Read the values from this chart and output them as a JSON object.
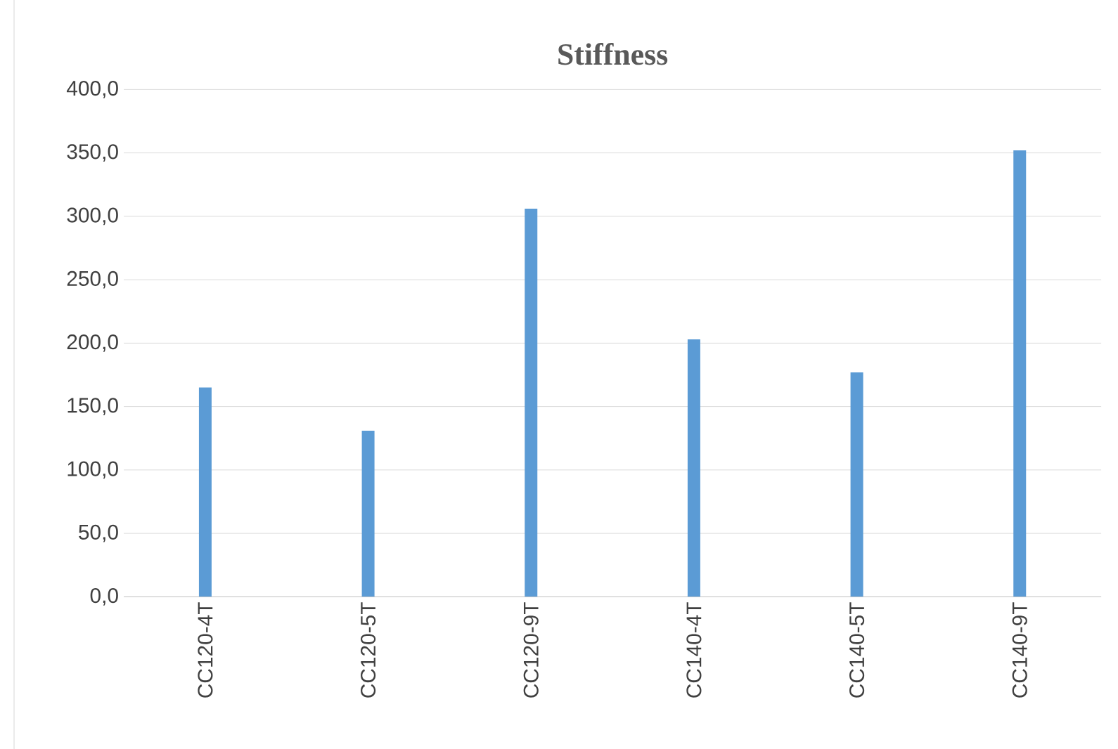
{
  "chart_data": {
    "type": "bar",
    "title": "Stiffness",
    "categories": [
      "CC120-4T",
      "CC120-5T",
      "CC120-9T",
      "CC140-4T",
      "CC140-5T",
      "CC140-9T"
    ],
    "values": [
      165,
      131,
      306,
      203,
      177,
      352
    ],
    "color": "#5b9bd5",
    "ylim": [
      0,
      400
    ],
    "yticks": [
      {
        "value": 0,
        "label": "0,0"
      },
      {
        "value": 50,
        "label": "50,0"
      },
      {
        "value": 100,
        "label": "100,0"
      },
      {
        "value": 150,
        "label": "150,0"
      },
      {
        "value": 200,
        "label": "200,0"
      },
      {
        "value": 250,
        "label": "250,0"
      },
      {
        "value": 300,
        "label": "300,0"
      },
      {
        "value": 350,
        "label": "350,0"
      },
      {
        "value": 400,
        "label": "400,0"
      }
    ],
    "grid": "y"
  }
}
